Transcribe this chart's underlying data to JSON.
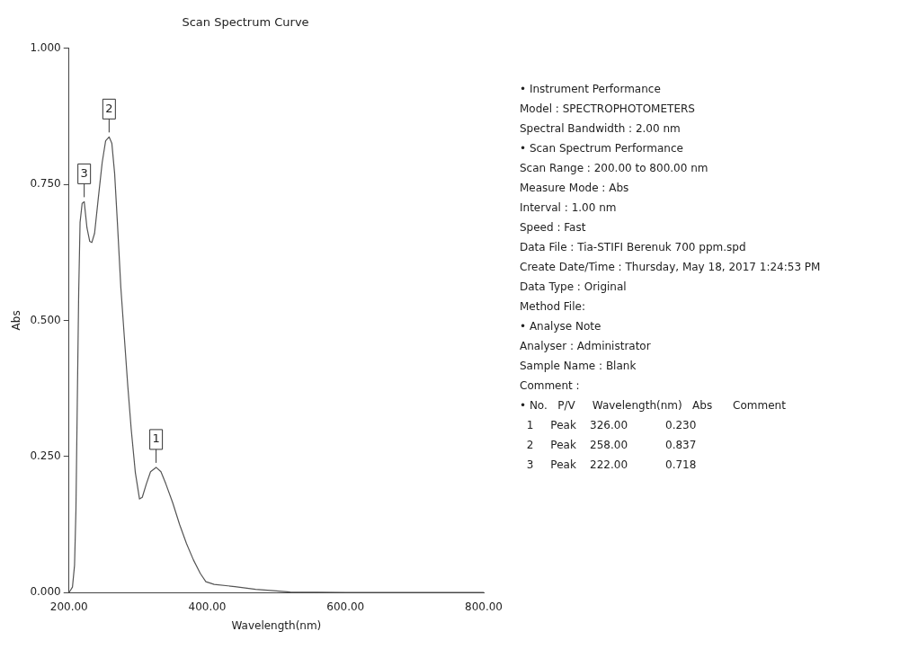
{
  "chart_data": {
    "type": "line",
    "title": "Scan Spectrum Curve",
    "xlabel": "Wavelength(nm)",
    "ylabel": "Abs",
    "x": [
      200,
      205,
      208,
      210,
      212,
      214,
      216,
      219,
      222,
      226,
      230,
      233,
      237,
      242,
      248,
      253,
      258,
      262,
      266,
      270,
      275,
      280,
      285,
      290,
      296,
      302,
      306,
      312,
      318,
      326,
      333,
      340,
      350,
      360,
      370,
      380,
      390,
      398,
      410,
      440,
      470,
      500,
      520,
      600,
      700,
      800
    ],
    "series": [
      {
        "color": "#555555",
        "values": [
          0,
          0.01,
          0.05,
          0.15,
          0.35,
          0.55,
          0.68,
          0.715,
          0.718,
          0.67,
          0.645,
          0.643,
          0.66,
          0.72,
          0.79,
          0.83,
          0.837,
          0.825,
          0.77,
          0.68,
          0.56,
          0.47,
          0.38,
          0.3,
          0.22,
          0.172,
          0.175,
          0.2,
          0.222,
          0.23,
          0.222,
          0.2,
          0.165,
          0.125,
          0.09,
          0.06,
          0.035,
          0.02,
          0.015,
          0.011,
          0.006,
          0.003,
          0.001,
          0,
          0,
          0
        ]
      }
    ],
    "xlim": [
      200,
      800
    ],
    "ylim": [
      0,
      1
    ],
    "xticks": [
      {
        "value": 200,
        "label": "200.00"
      },
      {
        "value": 400,
        "label": "400.00"
      },
      {
        "value": 600,
        "label": "600.00"
      },
      {
        "value": 800,
        "label": "800.00"
      }
    ],
    "yticks": [
      {
        "value": 0,
        "label": "0.000"
      },
      {
        "value": 0.25,
        "label": "0.250"
      },
      {
        "value": 0.5,
        "label": "0.500"
      },
      {
        "value": 0.75,
        "label": "0.750"
      },
      {
        "value": 1,
        "label": "1.000"
      }
    ],
    "grid": false,
    "legend": false,
    "marker": "none",
    "line_style": "solid",
    "annotations": [
      {
        "text": "1",
        "x": 326,
        "y": 0.23
      },
      {
        "text": "2",
        "x": 258,
        "y": 0.837
      },
      {
        "text": "3",
        "x": 222,
        "y": 0.718
      },
      "• Instrument Performance",
      "Model : SPECTROPHOTOMETERS",
      "Spectral Bandwidth : 2.00 nm",
      "• Scan Spectrum Performance",
      "Scan Range : 200.00 to 800.00 nm",
      "Measure Mode : Abs",
      "Interval : 1.00 nm",
      "Speed : Fast",
      "Data File : Tia-STIFI Berenuk 700 ppm.spd",
      "Create Date/Time : Thursday, May 18, 2017 1:24:53 PM",
      "Data Type : Original",
      "Method File:",
      "• Analyse Note",
      "Analyser : Administrator",
      "Sample Name : Blank",
      "Comment :",
      "• No.   P/V     Wavelength(nm)   Abs      Comment",
      "  1     Peak    326.00           0.230",
      "  2     Peak    258.00           0.837",
      "  3     Peak    222.00           0.718"
    ]
  }
}
